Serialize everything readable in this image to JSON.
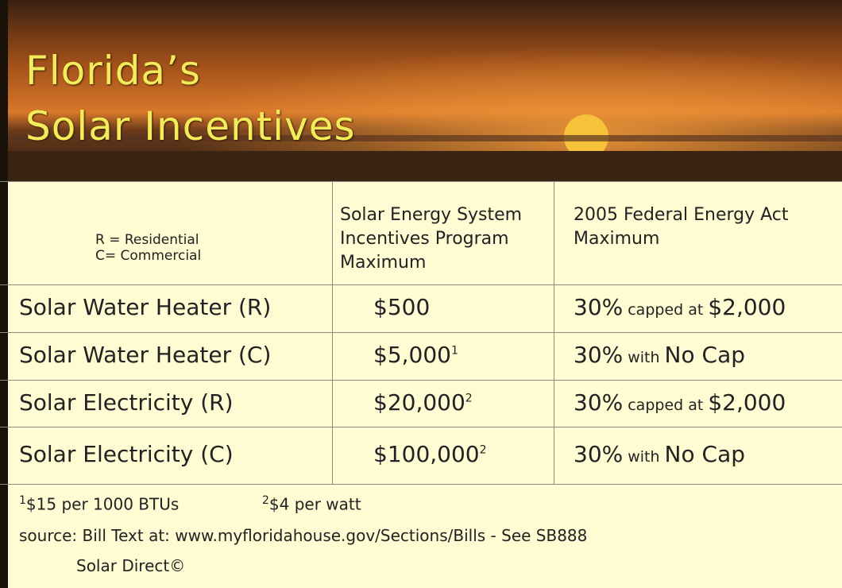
{
  "header": {
    "title": [
      "Florida’s",
      "Solar Incentives"
    ]
  },
  "table": {
    "key": [
      "R = Residential",
      "C= Commercial"
    ],
    "columns": [
      [
        "Solar Energy System",
        "Incentives Program",
        "Maximum"
      ],
      [
        "2005 Federal Energy Act",
        "Maximum"
      ]
    ],
    "rows": [
      {
        "label": "Solar Water Heater (R)",
        "amount": "$500",
        "federal": [
          "30%",
          "capped at",
          "$2,000"
        ]
      },
      {
        "label": "Solar Water Heater (C)",
        "amount": "$5,000",
        "note": "1",
        "federal": [
          "30%",
          "with",
          "No Cap"
        ]
      },
      {
        "label": "Solar Electricity (R)",
        "amount": "$20,000",
        "note": "2",
        "federal": [
          "30%",
          "capped at",
          "$2,000"
        ]
      },
      {
        "label": "Solar Electricity (C)",
        "amount": "$100,000",
        "note": "2",
        "federal": [
          "30%",
          "with",
          "No Cap"
        ]
      }
    ]
  },
  "footnotes": [
    {
      "mark": "1",
      "text": "$15 per 1000 BTUs"
    },
    {
      "mark": "2",
      "text": "$4 per watt"
    }
  ],
  "source": "source: Bill Text at: www.myfloridahouse.gov/Sections/Bills - See SB888",
  "credit": "Solar Direct©"
}
